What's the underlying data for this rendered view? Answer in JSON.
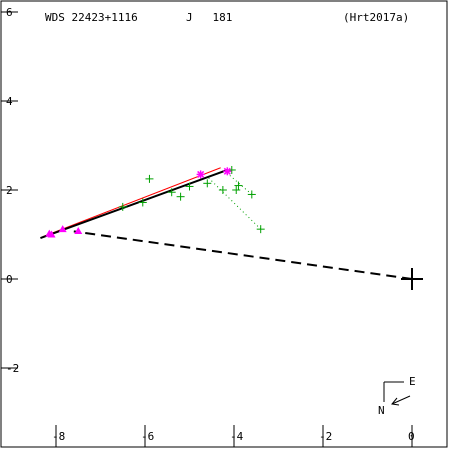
{
  "header": {
    "wds": "WDS 22423+1116",
    "epoch_label": "J   181",
    "ref": "(Hrt2017a)"
  },
  "compass": {
    "east": "E",
    "north": "N"
  },
  "chart_data": {
    "type": "scatter",
    "title": "",
    "xlabel": "",
    "ylabel": "",
    "xlim": [
      -9.2,
      0.8
    ],
    "ylim": [
      -3.8,
      6.2
    ],
    "x_ticks": [
      -8,
      -6,
      -4,
      -2,
      0
    ],
    "x_tick_labels": [
      "-8",
      "-6",
      "-4",
      "-2",
      "0"
    ],
    "y_ticks": [
      -2,
      0,
      2,
      4,
      6
    ],
    "y_tick_labels": [
      "-2",
      "0",
      "2",
      "4",
      "6"
    ],
    "grid": false,
    "primary": {
      "x": 0.0,
      "y": 0.0
    },
    "line_of_nodes": {
      "from": [
        0.0,
        0.0
      ],
      "to": [
        -7.6,
        1.07
      ]
    },
    "orbit": {
      "from": [
        -8.35,
        0.92
      ],
      "to": [
        -4.15,
        2.45
      ]
    },
    "orbit_alt": {
      "from": [
        -8.3,
        0.95
      ],
      "to": [
        -4.3,
        2.5
      ]
    },
    "observations": {
      "series": [
        {
          "marker": "plus",
          "color": "#00a000",
          "points": [
            [
              -5.9,
              2.25
            ],
            [
              -5.4,
              1.95
            ],
            [
              -5.2,
              1.85
            ],
            [
              -5.0,
              2.08
            ],
            [
              -4.6,
              2.15
            ],
            [
              -4.25,
              2.0
            ],
            [
              -4.05,
              2.45
            ],
            [
              -3.9,
              2.1
            ],
            [
              -3.95,
              2.0
            ],
            [
              -3.6,
              1.9
            ],
            [
              -3.4,
              1.12
            ],
            [
              -6.05,
              1.72
            ],
            [
              -6.5,
              1.62
            ]
          ]
        },
        {
          "marker": "triangle",
          "color": "#ff00ff",
          "points": [
            [
              -8.15,
              1.02
            ],
            [
              -8.1,
              1.0
            ],
            [
              -7.85,
              1.12
            ],
            [
              -7.5,
              1.08
            ]
          ]
        },
        {
          "marker": "star",
          "color": "#ff00ff",
          "points": [
            [
              -4.75,
              2.35
            ],
            [
              -4.15,
              2.42
            ]
          ]
        }
      ],
      "residuals": [
        {
          "from": [
            -3.6,
            1.9
          ],
          "to": [
            -4.2,
            2.42
          ]
        },
        {
          "from": [
            -3.4,
            1.12
          ],
          "to": [
            -4.6,
            2.3
          ]
        }
      ]
    }
  }
}
